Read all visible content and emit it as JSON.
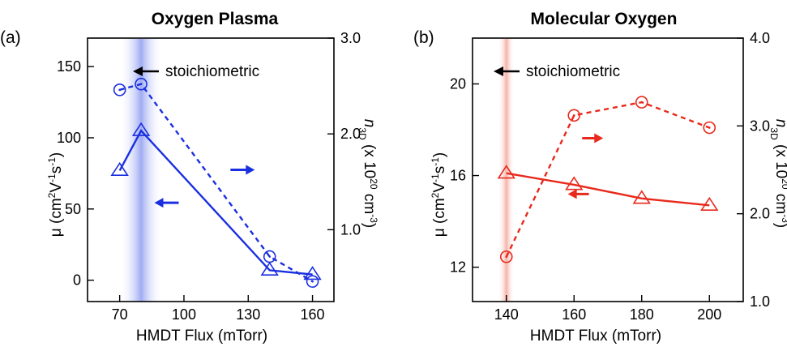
{
  "colors": {
    "panel_a": "#1a2fe0",
    "panel_b": "#e8291c",
    "axis": "#000000"
  },
  "chart_data": [
    {
      "type": "line",
      "panel_label": "(a)",
      "title": "Oxygen Plasma",
      "xlabel": "HMDT Flux (mTorr)",
      "ylabel_left": {
        "pre": "μ (cm",
        "sup1": "2",
        "mid": "V",
        "sup2": "-1",
        "mid2": "s",
        "sup3": "-1",
        "post": ")"
      },
      "ylabel_right": {
        "n": "n",
        "sub": "3D",
        "pre": " (x 10",
        "sup": "20",
        "mid": " cm",
        "sup2": "-3",
        "post": ")"
      },
      "xlim": [
        55,
        170
      ],
      "xticks": [
        "70",
        "100",
        "130",
        "160"
      ],
      "ylim_left": [
        -15,
        170
      ],
      "yticks_left": [
        "0",
        "50",
        "100",
        "150"
      ],
      "ylim_right": [
        0.25,
        3.0
      ],
      "yticks_right": [
        "1.0",
        "2.0",
        "3.0"
      ],
      "highlight_x": 80,
      "annotation": "stoichiometric",
      "series": [
        {
          "marker": "triangle",
          "style": "solid",
          "axis": "left",
          "x": [
            70,
            80,
            140,
            160
          ],
          "y": [
            77,
            105,
            7,
            4
          ]
        },
        {
          "marker": "circle",
          "style": "dashed",
          "axis": "right",
          "x": [
            70,
            80,
            140,
            160
          ],
          "y": [
            2.46,
            2.52,
            0.72,
            0.46
          ]
        }
      ]
    },
    {
      "type": "line",
      "panel_label": "(b)",
      "title": "Molecular Oxygen",
      "xlabel": "HMDT Flux (mTorr)",
      "ylabel_left": {
        "pre": "μ (cm",
        "sup1": "2",
        "mid": "V",
        "sup2": "-1",
        "mid2": "s",
        "sup3": "-1",
        "post": ")"
      },
      "ylabel_right": {
        "n": "n",
        "sub": "3D",
        "pre": " (x 10",
        "sup": "20",
        "mid": " cm",
        "sup2": "-3",
        "post": ")"
      },
      "xlim": [
        130,
        210
      ],
      "xticks": [
        "140",
        "160",
        "180",
        "200"
      ],
      "ylim_left": [
        10.5,
        22
      ],
      "yticks_left": [
        "12",
        "16",
        "20"
      ],
      "ylim_right": [
        1.0,
        4.0
      ],
      "yticks_right": [
        "1.0",
        "2.0",
        "3.0",
        "4.0"
      ],
      "highlight_x": 140,
      "annotation": "stoichiometric",
      "series": [
        {
          "marker": "triangle",
          "style": "solid",
          "axis": "left",
          "x": [
            140,
            160,
            180,
            200
          ],
          "y": [
            16.1,
            15.6,
            15.0,
            14.7
          ]
        },
        {
          "marker": "circle",
          "style": "dashed",
          "axis": "right",
          "x": [
            140,
            160,
            180,
            200
          ],
          "y": [
            1.51,
            3.12,
            3.27,
            2.98
          ]
        }
      ]
    }
  ]
}
